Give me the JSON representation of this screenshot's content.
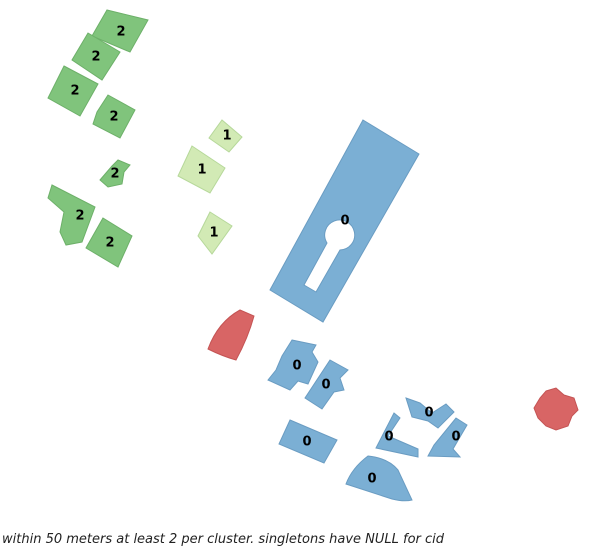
{
  "colors": {
    "cluster_0": "#7bafd4",
    "cluster_1": "#d2eab5",
    "cluster_2": "#80c47c",
    "null_cluster": "#d86565",
    "outline_0": "#6a9cc2",
    "outline_1": "#b6d89a",
    "outline_2": "#6db069",
    "outline_null": "#c45454"
  },
  "labels": {
    "b2_a": "2",
    "b2_b": "2",
    "b2_c": "2",
    "b2_d": "2",
    "b2_e": "2",
    "b2_f": "2",
    "b2_g": "2",
    "b1_a": "1",
    "b1_b": "1",
    "b1_c": "1",
    "b0_big": "0",
    "b0_a": "0",
    "b0_b": "0",
    "b0_c": "0",
    "b0_d": "0",
    "b0_e": "0",
    "b0_f": "0",
    "b0_g": "0"
  },
  "caption": "within 50 meters at least 2 per cluster. singletons have NULL for cid"
}
